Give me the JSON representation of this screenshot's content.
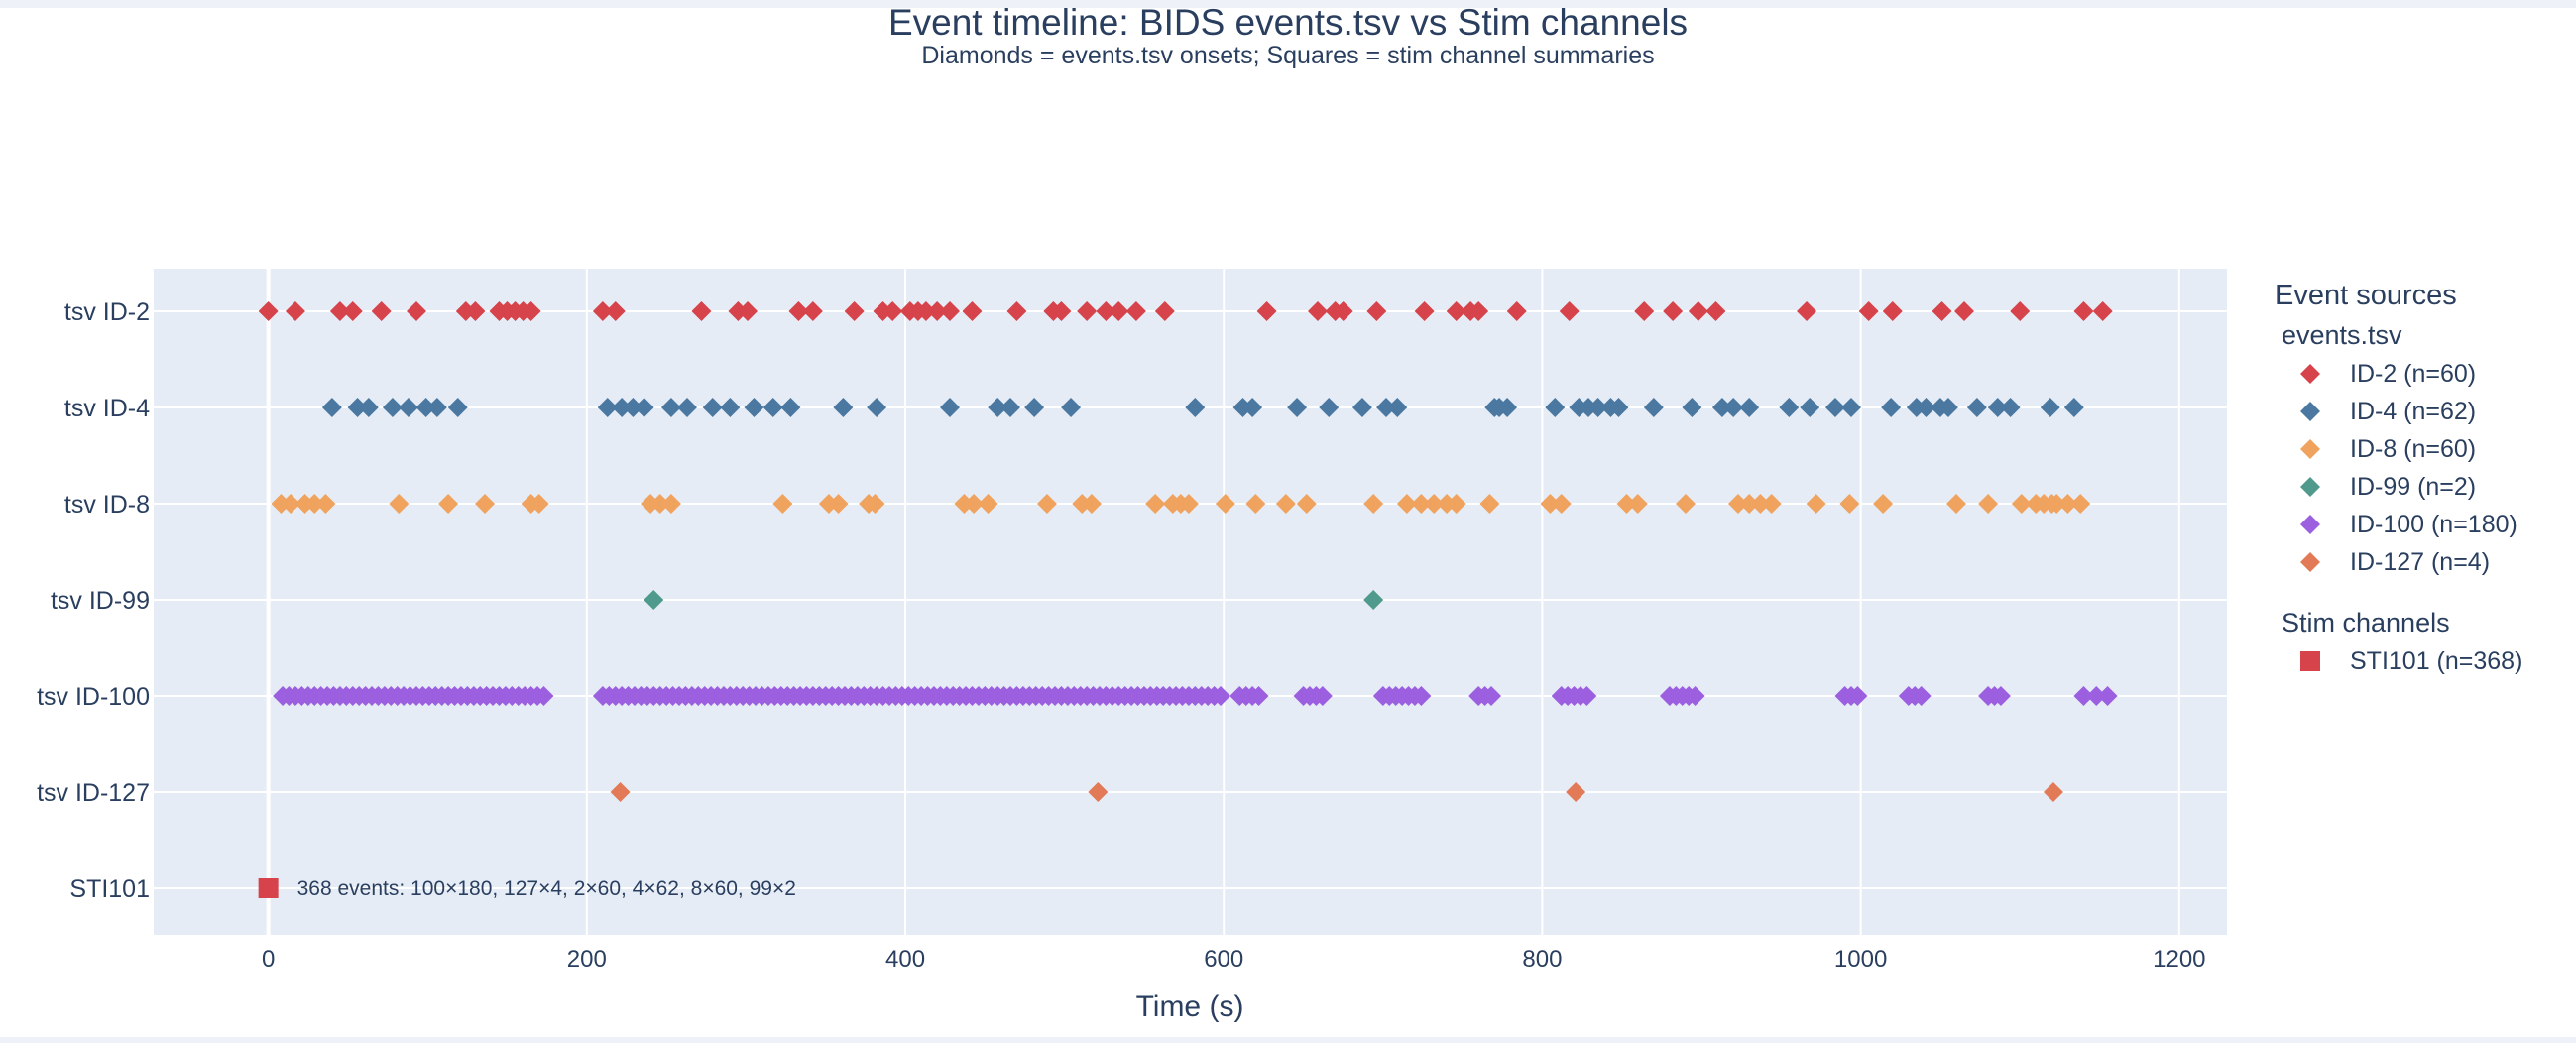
{
  "chart_data": {
    "type": "scatter",
    "title": "Event timeline: BIDS events.tsv vs Stim channels",
    "subtitle": "Diamonds = events.tsv onsets; Squares = stim channel summaries",
    "xlabel": "Time (s)",
    "ylabel": "",
    "xlim": [
      -72,
      1230
    ],
    "x_ticks": [
      0,
      200,
      400,
      600,
      800,
      1000,
      1200
    ],
    "grid": true,
    "plot_background": "#e5ecf6",
    "y_categories": [
      "tsv ID-2",
      "tsv ID-4",
      "tsv ID-8",
      "tsv ID-99",
      "tsv ID-100",
      "tsv ID-127",
      "STI101"
    ],
    "legend": {
      "title": "Event sources",
      "position": "right",
      "groups": [
        {
          "title": "events.tsv",
          "items": [
            "ID-2 (n=60)",
            "ID-4 (n=62)",
            "ID-8 (n=60)",
            "ID-99 (n=2)",
            "ID-100 (n=180)",
            "ID-127 (n=4)"
          ]
        },
        {
          "title": "Stim channels",
          "items": [
            "STI101 (n=368)"
          ]
        }
      ]
    },
    "series": [
      {
        "name": "ID-2 (n=60)",
        "category": "tsv ID-2",
        "marker": "diamond",
        "color": "#d6434b",
        "x": [
          17,
          45,
          53,
          71,
          93,
          124,
          130,
          145,
          150,
          155,
          160,
          165,
          210,
          218,
          272,
          295,
          301,
          333,
          342,
          368,
          386,
          392,
          403,
          408,
          413,
          420,
          428,
          442,
          470,
          493,
          498,
          514,
          526,
          534,
          545,
          563,
          627,
          659,
          670,
          675,
          696,
          726,
          746,
          755,
          760,
          784,
          817,
          864,
          882,
          898,
          909,
          966,
          1005,
          1020,
          1051,
          1065,
          1100,
          1140,
          1152,
          0
        ]
      },
      {
        "name": "ID-4 (n=62)",
        "category": "tsv ID-4",
        "marker": "diamond",
        "color": "#4a78a1",
        "x": [
          40,
          56,
          63,
          78,
          88,
          99,
          106,
          119,
          213,
          222,
          229,
          236,
          253,
          263,
          279,
          290,
          305,
          317,
          328,
          361,
          382,
          428,
          458,
          466,
          481,
          504,
          582,
          612,
          618,
          646,
          666,
          687,
          702,
          709,
          770,
          773,
          778,
          808,
          823,
          829,
          835,
          843,
          848,
          870,
          894,
          913,
          920,
          930,
          955,
          968,
          984,
          994,
          1019,
          1035,
          1041,
          1050,
          1055,
          1073,
          1086,
          1094,
          1119,
          1134
        ]
      },
      {
        "name": "ID-8 (n=60)",
        "category": "tsv ID-8",
        "marker": "diamond",
        "color": "#f0a35e",
        "x": [
          8,
          14,
          23,
          29,
          36,
          82,
          113,
          136,
          165,
          170,
          240,
          246,
          253,
          323,
          352,
          358,
          377,
          381,
          437,
          443,
          452,
          489,
          511,
          517,
          557,
          568,
          573,
          578,
          601,
          620,
          639,
          652,
          694,
          715,
          724,
          732,
          740,
          746,
          767,
          805,
          812,
          853,
          860,
          890,
          923,
          930,
          937,
          944,
          972,
          993,
          1014,
          1060,
          1080,
          1101,
          1115,
          1123,
          1130,
          1138,
          1120,
          1110
        ]
      },
      {
        "name": "ID-99 (n=2)",
        "category": "tsv ID-99",
        "marker": "diamond",
        "color": "#4f9a8c",
        "x": [
          242,
          694
        ]
      },
      {
        "name": "ID-100 (n=180)",
        "category": "tsv ID-100",
        "marker": "diamond",
        "color": "#9b5fe0",
        "x": [
          9,
          13,
          17,
          21,
          25,
          29,
          33,
          37,
          41,
          45,
          49,
          53,
          57,
          61,
          65,
          69,
          73,
          77,
          81,
          85,
          89,
          93,
          97,
          101,
          105,
          109,
          113,
          117,
          121,
          125,
          129,
          133,
          137,
          141,
          145,
          149,
          153,
          157,
          161,
          165,
          169,
          173,
          210,
          214,
          218,
          222,
          226,
          230,
          234,
          238,
          242,
          246,
          250,
          254,
          258,
          262,
          266,
          270,
          274,
          278,
          282,
          286,
          290,
          294,
          298,
          302,
          306,
          310,
          314,
          318,
          322,
          326,
          330,
          334,
          338,
          342,
          346,
          350,
          354,
          358,
          362,
          366,
          370,
          374,
          378,
          382,
          386,
          390,
          394,
          398,
          402,
          406,
          410,
          414,
          418,
          422,
          426,
          430,
          434,
          438,
          442,
          446,
          450,
          454,
          458,
          462,
          466,
          470,
          474,
          478,
          482,
          486,
          490,
          494,
          498,
          502,
          506,
          510,
          514,
          518,
          522,
          526,
          530,
          534,
          538,
          542,
          546,
          550,
          554,
          558,
          562,
          566,
          570,
          574,
          578,
          582,
          586,
          590,
          594,
          598,
          610,
          614,
          618,
          622,
          650,
          654,
          658,
          662,
          700,
          704,
          708,
          712,
          716,
          720,
          724,
          760,
          764,
          768,
          812,
          816,
          820,
          824,
          828,
          880,
          884,
          888,
          892,
          896,
          990,
          994,
          998,
          1030,
          1034,
          1038,
          1080,
          1084,
          1088,
          1140,
          1148,
          1155
        ]
      },
      {
        "name": "ID-127 (n=4)",
        "category": "tsv ID-127",
        "marker": "diamond",
        "color": "#e27a57",
        "x": [
          221,
          521,
          821,
          1121
        ]
      },
      {
        "name": "STI101 (n=368)",
        "category": "STI101",
        "marker": "square",
        "color": "#d6434b",
        "x": [
          0
        ],
        "annotation": "368 events: 100×180, 127×4, 2×60, 4×62, 8×60, 99×2"
      }
    ]
  }
}
